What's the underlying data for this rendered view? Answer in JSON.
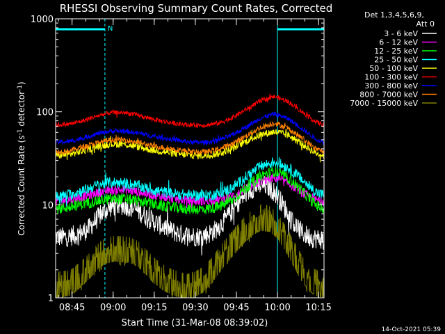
{
  "chart_data": {
    "type": "line",
    "title": "RHESSI Observing Summary Count Rates, Corrected",
    "xlabel": "Start Time (31-Mar-08 08:39:02)",
    "ylabel_main": "Corrected Count Rate (s",
    "ylabel_sup1": "-1",
    "ylabel_mid": " detector",
    "ylabel_sup2": "-1",
    "ylabel_end": ")",
    "y_scale": "log",
    "ylim": [
      1,
      1000
    ],
    "xlim_minutes": [
      0,
      98
    ],
    "x_ticks": [
      {
        "minute": 6,
        "label": "08:45"
      },
      {
        "minute": 21,
        "label": "09:00"
      },
      {
        "minute": 36,
        "label": "09:15"
      },
      {
        "minute": 51,
        "label": "09:30"
      },
      {
        "minute": 66,
        "label": "09:45"
      },
      {
        "minute": 81,
        "label": "10:00"
      },
      {
        "minute": 96,
        "label": "10:15"
      }
    ],
    "y_ticks": [
      {
        "value": 1,
        "label": "1"
      },
      {
        "value": 10,
        "label": "10"
      },
      {
        "value": 100,
        "label": "100"
      },
      {
        "value": 1000,
        "label": "1000"
      }
    ],
    "legend_header": [
      "Det 1,3,4,5,6,9,",
      "Att 0"
    ],
    "legend_placement": "top-right outside",
    "series": [
      {
        "name": "3 - 6 keV",
        "color": "#ffffff",
        "x": [
          0,
          4,
          8,
          12,
          14,
          16,
          18,
          20,
          22,
          24,
          26,
          28,
          30,
          32,
          34,
          36,
          38,
          40,
          42,
          44,
          46,
          48,
          50,
          52,
          54,
          56,
          58,
          60,
          62,
          64,
          66,
          68,
          70,
          72,
          74,
          76,
          78,
          80,
          82,
          84,
          86,
          88,
          90,
          92,
          94,
          96,
          98
        ],
        "y": [
          4.5,
          4.5,
          4.8,
          5.5,
          6.5,
          7.6,
          8.6,
          9.4,
          9.8,
          9.9,
          9.7,
          9.2,
          8.6,
          7.9,
          7.2,
          6.6,
          6.1,
          5.7,
          5.3,
          5.0,
          4.8,
          4.7,
          4.6,
          4.6,
          4.7,
          4.9,
          5.3,
          6.0,
          7.0,
          8.3,
          10.0,
          11.8,
          13.6,
          15.0,
          16.0,
          16.2,
          15.4,
          13.6,
          11.2,
          8.8,
          7.0,
          5.8,
          5.0,
          4.6,
          4.4,
          4.3,
          4.3
        ]
      },
      {
        "name": "6 - 12 keV",
        "color": "#ff00ff",
        "x": [
          0,
          5,
          10,
          15,
          20,
          25,
          30,
          35,
          40,
          45,
          50,
          55,
          60,
          65,
          70,
          75,
          80,
          85,
          90,
          95,
          98
        ],
        "y": [
          11,
          11.4,
          12.2,
          13.4,
          14.3,
          14.5,
          13.8,
          12.8,
          12.0,
          11.4,
          11.0,
          11.0,
          11.4,
          12.6,
          15.0,
          18.0,
          19.5,
          17.0,
          13.5,
          11.4,
          11.0
        ]
      },
      {
        "name": "12 - 25 keV",
        "color": "#00ff00",
        "x": [
          0,
          5,
          10,
          15,
          20,
          25,
          30,
          35,
          40,
          45,
          50,
          55,
          60,
          65,
          70,
          75,
          80,
          85,
          90,
          95,
          98
        ],
        "y": [
          9.0,
          9.4,
          10.2,
          11.0,
          11.6,
          11.6,
          11.0,
          10.2,
          9.6,
          9.2,
          9.0,
          9.0,
          9.6,
          11.6,
          15.8,
          20.5,
          23.0,
          19.5,
          14.0,
          10.0,
          9.0
        ]
      },
      {
        "name": "25 - 50 keV",
        "color": "#00ffff",
        "x": [
          0,
          5,
          10,
          15,
          20,
          25,
          30,
          35,
          40,
          45,
          50,
          55,
          60,
          65,
          70,
          75,
          80,
          85,
          90,
          95,
          98
        ],
        "y": [
          12.2,
          12.8,
          14.2,
          16.2,
          17.4,
          17.2,
          16.0,
          14.6,
          13.6,
          13.0,
          12.6,
          12.6,
          13.2,
          15.6,
          20.5,
          26.0,
          29.0,
          25.0,
          18.5,
          13.8,
          12.6
        ]
      },
      {
        "name": "50 - 100 keV",
        "color": "#ffff00",
        "x": [
          0,
          5,
          10,
          15,
          20,
          25,
          30,
          35,
          40,
          45,
          50,
          55,
          60,
          65,
          70,
          75,
          80,
          85,
          90,
          95,
          98
        ],
        "y": [
          34,
          35,
          38,
          42,
          45,
          45,
          42,
          39,
          37,
          35,
          34,
          34,
          36,
          41,
          49,
          57,
          61,
          56,
          45,
          36,
          34
        ]
      },
      {
        "name": "100 - 300 keV",
        "color": "#ff0000",
        "x": [
          0,
          5,
          10,
          15,
          20,
          25,
          30,
          35,
          40,
          45,
          50,
          55,
          60,
          65,
          70,
          75,
          80,
          85,
          90,
          95,
          98
        ],
        "y": [
          72,
          74,
          80,
          90,
          98,
          98,
          92,
          84,
          78,
          74,
          72,
          72,
          76,
          88,
          108,
          132,
          146,
          128,
          100,
          78,
          72
        ]
      },
      {
        "name": "300 - 800 keV",
        "color": "#0000ff",
        "x": [
          0,
          5,
          10,
          15,
          20,
          25,
          30,
          35,
          40,
          45,
          50,
          55,
          60,
          65,
          70,
          75,
          80,
          85,
          90,
          95,
          98
        ],
        "y": [
          47,
          48,
          52,
          58,
          62,
          62,
          59,
          55,
          52,
          49,
          47,
          47,
          50,
          57,
          70,
          86,
          95,
          84,
          66,
          51,
          47
        ]
      },
      {
        "name": "800 - 7000 keV",
        "color": "#ff8000",
        "x": [
          0,
          5,
          10,
          15,
          20,
          25,
          30,
          35,
          40,
          45,
          50,
          55,
          60,
          65,
          70,
          75,
          80,
          85,
          90,
          95,
          98
        ],
        "y": [
          37,
          38,
          42,
          46,
          50,
          50,
          47,
          43,
          41,
          39,
          37,
          37,
          40,
          46,
          56,
          68,
          76,
          66,
          52,
          40,
          37
        ]
      },
      {
        "name": "7000 - 15000 keV",
        "color": "#808000",
        "x": [
          0,
          3,
          6,
          9,
          12,
          15,
          18,
          21,
          24,
          27,
          30,
          33,
          36,
          39,
          42,
          45,
          48,
          51,
          54,
          57,
          60,
          63,
          66,
          69,
          72,
          75,
          78,
          81,
          84,
          87,
          90,
          93,
          96,
          98
        ],
        "y": [
          1.5,
          1.5,
          1.6,
          1.9,
          2.3,
          2.9,
          3.4,
          3.6,
          3.6,
          3.5,
          3.2,
          2.6,
          2.1,
          1.8,
          1.6,
          1.5,
          1.4,
          1.5,
          1.7,
          2.1,
          2.8,
          3.6,
          4.6,
          5.8,
          7.0,
          7.8,
          7.6,
          6.4,
          4.6,
          3.2,
          2.2,
          1.7,
          1.5,
          1.5
        ]
      }
    ],
    "markers": {
      "attenuator_label": "N",
      "color": "#00ffff",
      "solid_lines_minute": [
        0,
        81
      ],
      "dashed_lines_minute": [
        18,
        98
      ],
      "top_bars_minute": [
        [
          0,
          18
        ],
        [
          81,
          98
        ]
      ]
    },
    "footer_date": "14-Oct-2021 05:39"
  }
}
